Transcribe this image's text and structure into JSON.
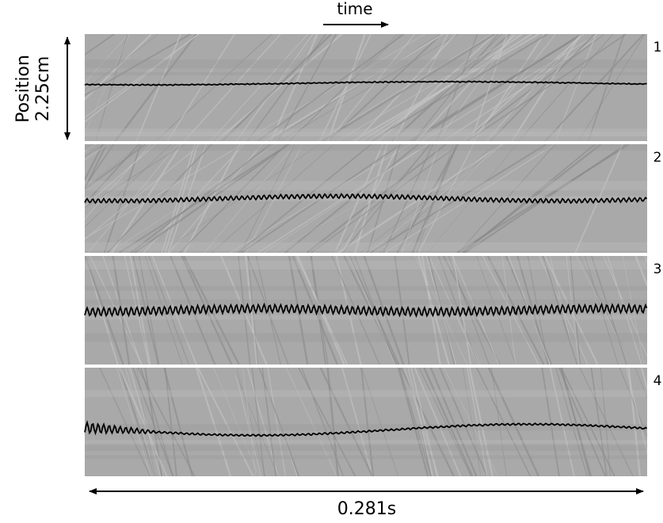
{
  "labels": {
    "time": "time",
    "position": "Position",
    "scale_y": "2.25cm",
    "scale_x": "0.281s"
  },
  "panels": [
    {
      "label": "1"
    },
    {
      "label": "2"
    },
    {
      "label": "3"
    },
    {
      "label": "4"
    }
  ]
}
